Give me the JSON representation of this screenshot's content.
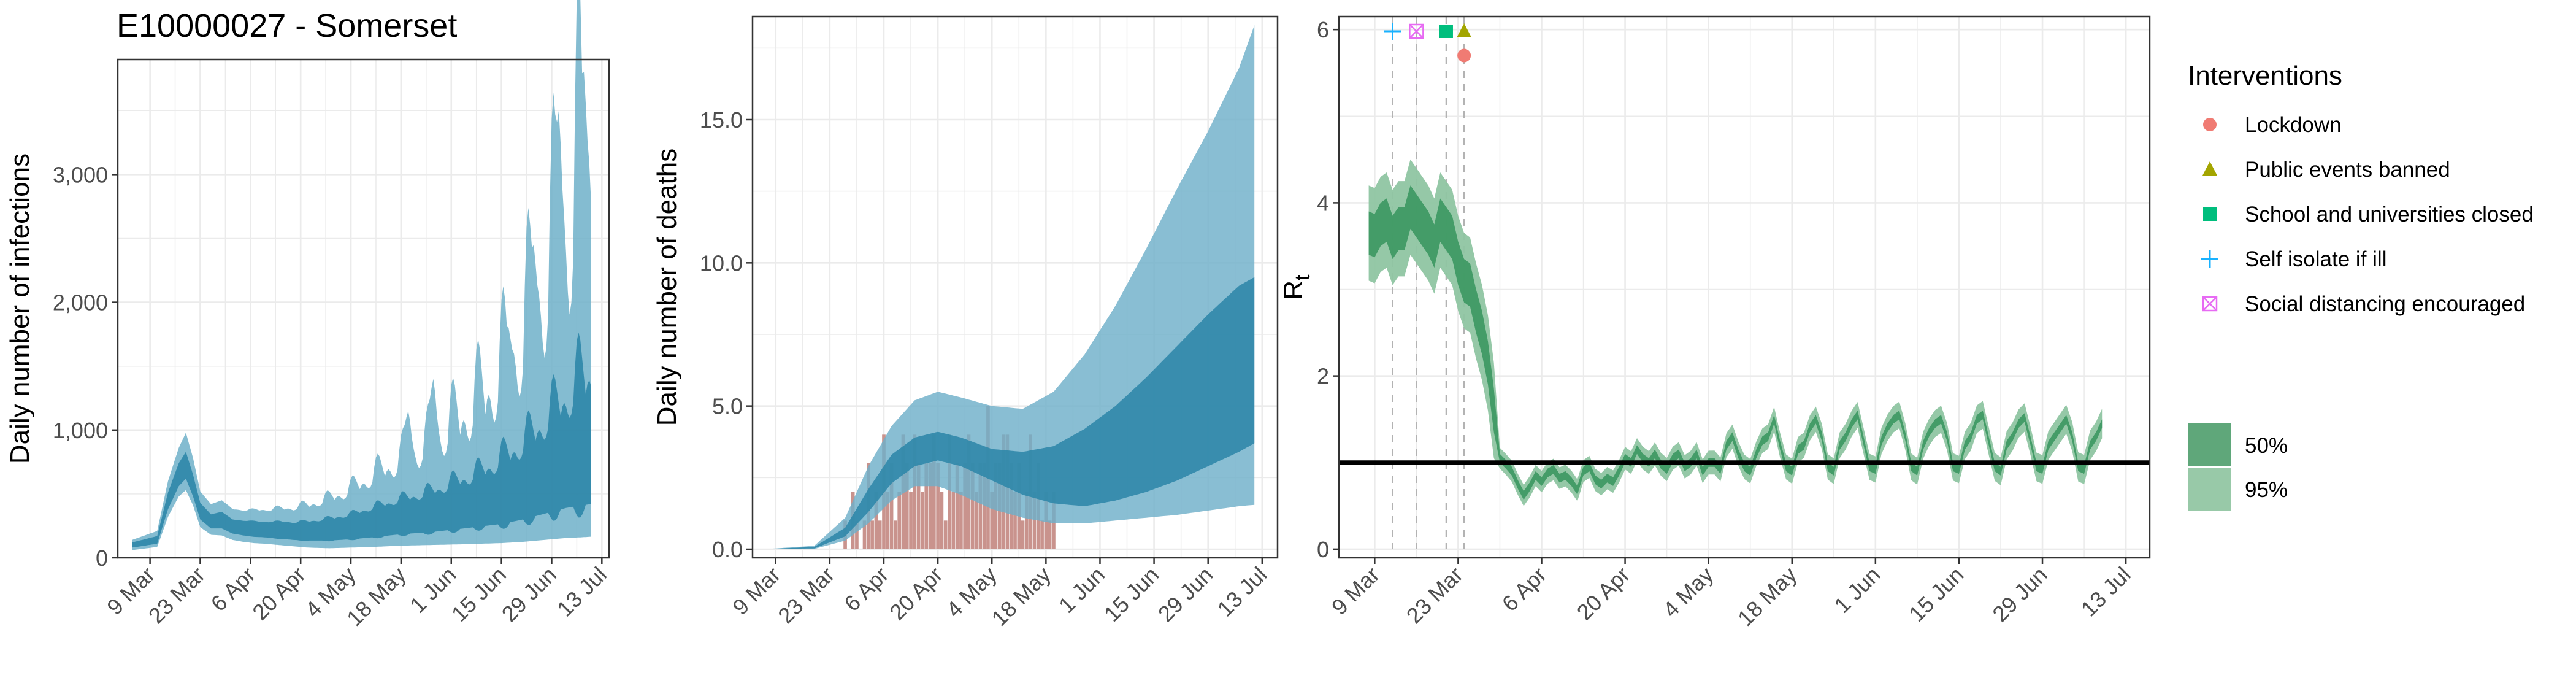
{
  "figure_title": "E10000027 - Somerset",
  "colors": {
    "infection_inner": "#2e86a8",
    "infection_outer": "#6fb0c9",
    "deaths_observed": "#c9938d",
    "rt_inner": "#3f9a64",
    "rt_outer": "#8fc5a2",
    "lockdown": "#f07b73",
    "public_events": "#a3a500",
    "school": "#00be7d",
    "self_isolate": "#19b2ff",
    "social_distancing": "#e76bf3",
    "grid": "#ebebeb",
    "axis": "#333333"
  },
  "legend": {
    "interventions_title": "Interventions",
    "interventions": [
      {
        "label": "Lockdown",
        "shape": "circle",
        "color": "#f07b73"
      },
      {
        "label": "Public events banned",
        "shape": "triangle",
        "color": "#a3a500"
      },
      {
        "label": "School and universities closed",
        "shape": "square",
        "color": "#00be7d"
      },
      {
        "label": "Self isolate if ill",
        "shape": "plus",
        "color": "#19b2ff"
      },
      {
        "label": "Social distancing encouraged",
        "shape": "boxx",
        "color": "#e76bf3"
      }
    ],
    "intervals": [
      {
        "label": "50%",
        "color": "#5fa77a"
      },
      {
        "label": "95%",
        "color": "#98c9a8"
      }
    ]
  },
  "chart_data": [
    {
      "id": "infections",
      "type": "area",
      "title": "",
      "xlabel": "",
      "ylabel": "Daily number of infections",
      "x_ticks": [
        0,
        14,
        28,
        42,
        56,
        70,
        84,
        98,
        112,
        126
      ],
      "x_tick_labels": [
        "9 Mar",
        "23 Mar",
        "6 Apr",
        "20 Apr",
        "4 May",
        "18 May",
        "1 Jun",
        "15 Jun",
        "29 Jun",
        "13 Jul"
      ],
      "xlim": [
        -9,
        128
      ],
      "ylim": [
        0,
        3900
      ],
      "y_ticks": [
        0,
        1000,
        2000,
        3000
      ],
      "y_tick_labels": [
        "0",
        "1,000",
        "2,000",
        "3,000"
      ],
      "x_knots": [
        -5,
        2,
        5,
        8,
        10,
        12,
        14,
        17,
        20,
        23,
        26,
        29,
        32,
        36,
        40,
        44,
        50,
        56,
        62,
        70,
        78,
        86,
        92,
        98,
        104,
        108,
        112,
        116,
        120,
        123
      ],
      "median_knots": [
        100,
        140,
        440,
        640,
        720,
        560,
        360,
        280,
        290,
        240,
        230,
        220,
        210,
        210,
        200,
        200,
        210,
        230,
        260,
        300,
        330,
        380,
        420,
        470,
        540,
        600,
        670,
        730,
        780,
        800
      ],
      "inner_lower_knots": [
        80,
        110,
        380,
        560,
        620,
        480,
        300,
        230,
        230,
        190,
        175,
        165,
        160,
        150,
        140,
        135,
        135,
        145,
        160,
        185,
        200,
        225,
        245,
        265,
        300,
        330,
        360,
        390,
        410,
        420
      ],
      "inner_upper_knots": [
        120,
        170,
        510,
        740,
        830,
        650,
        430,
        340,
        360,
        300,
        290,
        285,
        280,
        280,
        275,
        280,
        300,
        330,
        380,
        440,
        490,
        570,
        630,
        720,
        830,
        930,
        1040,
        1150,
        1260,
        1300
      ],
      "outer_lower_knots": [
        60,
        85,
        320,
        480,
        530,
        410,
        240,
        180,
        175,
        140,
        125,
        115,
        110,
        100,
        90,
        80,
        75,
        80,
        85,
        95,
        100,
        105,
        110,
        115,
        125,
        135,
        145,
        155,
        160,
        165
      ],
      "outer_upper_knots": [
        140,
        210,
        600,
        860,
        980,
        780,
        520,
        420,
        450,
        380,
        370,
        370,
        370,
        375,
        380,
        395,
        440,
        500,
        590,
        700,
        800,
        950,
        1080,
        1250,
        1480,
        1700,
        1950,
        2200,
        2450,
        2550
      ],
      "upper_peaks": [
        {
          "day": 72,
          "value": 1150
        },
        {
          "day": 79,
          "value": 1400
        },
        {
          "day": 100,
          "value": 1800
        },
        {
          "day": 107,
          "value": 2450
        },
        {
          "day": 114,
          "value": 3500
        },
        {
          "day": 121,
          "value": 3800
        }
      ]
    },
    {
      "id": "deaths",
      "type": "area",
      "title": "",
      "xlabel": "",
      "ylabel": "Daily number of deaths",
      "x_ticks": [
        0,
        14,
        28,
        42,
        56,
        70,
        84,
        98,
        112,
        126
      ],
      "x_tick_labels": [
        "9 Mar",
        "23 Mar",
        "6 Apr",
        "20 Apr",
        "4 May",
        "18 May",
        "1 Jun",
        "15 Jun",
        "29 Jun",
        "13 Jul"
      ],
      "xlim": [
        -6,
        130
      ],
      "ylim": [
        -0.3,
        18.6
      ],
      "y_ticks": [
        0,
        5,
        10,
        15
      ],
      "y_tick_labels": [
        "0.0",
        "5.0",
        "10.0",
        "15.0"
      ],
      "x_knots": [
        -3,
        10,
        18,
        24,
        30,
        36,
        42,
        48,
        56,
        64,
        72,
        80,
        88,
        96,
        104,
        112,
        120,
        124
      ],
      "median_knots": [
        0,
        0.05,
        0.6,
        1.7,
        2.8,
        3.4,
        3.6,
        3.4,
        3.0,
        2.7,
        2.6,
        2.8,
        3.3,
        4.0,
        5.0,
        6.3,
        7.7,
        8.5
      ],
      "inner_lower_knots": [
        0,
        0.03,
        0.45,
        1.3,
        2.3,
        2.9,
        3.1,
        2.9,
        2.4,
        1.9,
        1.6,
        1.5,
        1.7,
        2.0,
        2.4,
        2.9,
        3.4,
        3.7
      ],
      "inner_upper_knots": [
        0,
        0.08,
        0.75,
        2.1,
        3.3,
        3.9,
        4.1,
        3.9,
        3.5,
        3.4,
        3.6,
        4.2,
        5.0,
        6.0,
        7.1,
        8.2,
        9.2,
        9.5
      ],
      "outer_lower_knots": [
        0,
        0.01,
        0.3,
        0.9,
        1.7,
        2.2,
        2.2,
        1.9,
        1.4,
        1.1,
        0.9,
        0.9,
        1.0,
        1.1,
        1.2,
        1.35,
        1.5,
        1.55
      ],
      "outer_upper_knots": [
        0,
        0.12,
        1.1,
        2.9,
        4.3,
        5.2,
        5.5,
        5.3,
        5.0,
        4.9,
        5.5,
        6.8,
        8.5,
        10.5,
        12.6,
        14.6,
        16.8,
        18.3
      ],
      "observed_start_day": 18,
      "observed_deaths": [
        1,
        0,
        2,
        1,
        0,
        1,
        3,
        1,
        2,
        1,
        4,
        2,
        3,
        1,
        2,
        4,
        3,
        2,
        4,
        3,
        2,
        3,
        3,
        4,
        3,
        2,
        1,
        4,
        2,
        3,
        2,
        3,
        4,
        3,
        2,
        3,
        3,
        5,
        2,
        3,
        3,
        4,
        4,
        3,
        2,
        3,
        1,
        2,
        4,
        2,
        3,
        1,
        2,
        1,
        2
      ]
    },
    {
      "id": "rt",
      "type": "area",
      "title": "",
      "xlabel": "",
      "ylabel": "R",
      "ylabel_subscript": "t",
      "x_ticks": [
        0,
        14,
        28,
        42,
        56,
        70,
        84,
        98,
        112,
        126
      ],
      "x_tick_labels": [
        "9 Mar",
        "23 Mar",
        "6 Apr",
        "20 Apr",
        "4 May",
        "18 May",
        "1 Jun",
        "15 Jun",
        "29 Jun",
        "13 Jul"
      ],
      "xlim": [
        -6,
        130
      ],
      "ylim": [
        -0.1,
        6.15
      ],
      "y_ticks": [
        0,
        2,
        4,
        6
      ],
      "y_tick_labels": [
        "0",
        "2",
        "4",
        "6"
      ],
      "reference_line": 1,
      "rt_start_day": -1,
      "rt_median": [
        3.65,
        3.62,
        3.75,
        3.8,
        3.6,
        3.7,
        3.7,
        3.95,
        3.85,
        3.75,
        3.65,
        3.5,
        3.8,
        3.7,
        3.6,
        3.3,
        3.1,
        3.05,
        2.75,
        2.5,
        2.15,
        1.6,
        1.05,
        0.98,
        0.9,
        0.75,
        0.62,
        0.72,
        0.85,
        0.78,
        0.88,
        0.92,
        0.82,
        0.85,
        0.78,
        0.68,
        0.9,
        0.95,
        0.8,
        0.75,
        0.82,
        0.78,
        0.9,
        1.05,
        1.0,
        1.15,
        1.05,
        1.0,
        1.1,
        0.98,
        0.92,
        1.05,
        1.1,
        0.95,
        1.0,
        1.1,
        0.9,
        1.0,
        1.0,
        0.92,
        1.2,
        1.3,
        1.1,
        0.95,
        0.9,
        1.1,
        1.25,
        1.3,
        1.5,
        1.2,
        0.95,
        0.9,
        1.15,
        1.2,
        1.4,
        1.5,
        1.3,
        0.95,
        0.9,
        1.2,
        1.3,
        1.45,
        1.55,
        1.25,
        0.95,
        0.92,
        1.25,
        1.4,
        1.5,
        1.55,
        1.3,
        0.95,
        0.9,
        1.2,
        1.35,
        1.45,
        1.5,
        1.3,
        0.95,
        0.92,
        1.2,
        1.3,
        1.5,
        1.55,
        1.25,
        0.95,
        0.9,
        1.2,
        1.3,
        1.45,
        1.52,
        1.25,
        0.95,
        0.92,
        1.2,
        1.3,
        1.4,
        1.5,
        1.3,
        0.95,
        0.92,
        1.2,
        1.3,
        1.45
      ],
      "interventions": [
        {
          "label": "Self isolate if ill",
          "day": 3,
          "shape": "plus",
          "y": 5.98
        },
        {
          "label": "Social distancing encouraged",
          "day": 7,
          "shape": "boxx",
          "y": 5.98
        },
        {
          "label": "School and universities closed",
          "day": 12,
          "shape": "square",
          "y": 5.98
        },
        {
          "label": "Public events banned",
          "day": 15,
          "shape": "triangle",
          "y": 5.98
        },
        {
          "label": "Lockdown",
          "day": 15,
          "shape": "circle",
          "y": 5.7
        }
      ]
    }
  ]
}
